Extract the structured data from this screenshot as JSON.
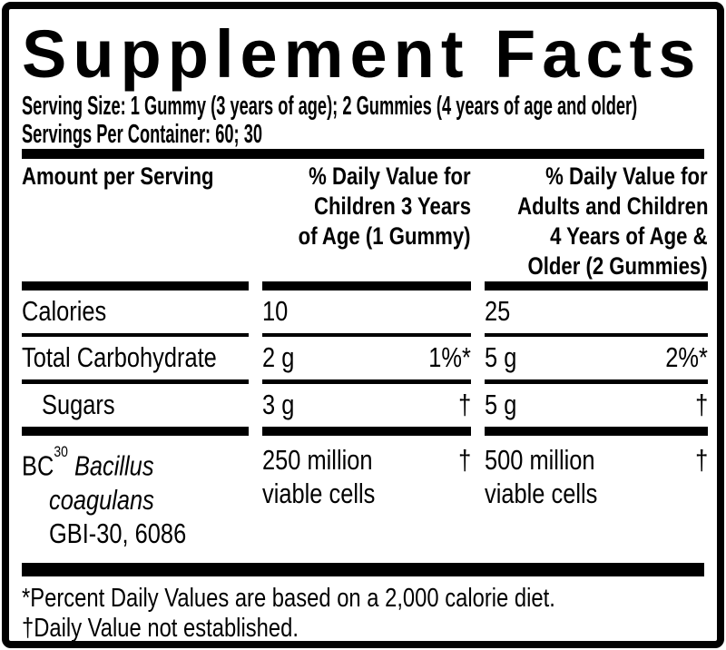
{
  "colors": {
    "text": "#000000",
    "background": "#ffffff",
    "border": "#000000"
  },
  "label": {
    "title": "Supplement Facts",
    "serving_size": "Serving Size: 1 Gummy (3 years of age); 2 Gummies (4 years of age and older)",
    "servings_per_container": "Servings Per Container: 60; 30"
  },
  "table": {
    "header": {
      "col1": "Amount per Serving",
      "col2_lines": [
        "% Daily Value for",
        "Children 3 Years",
        "of Age (1 Gummy)"
      ],
      "col3_lines": [
        "% Daily Value for",
        "Adults and Children",
        "4 Years of Age &",
        "Older (2 Gummies)"
      ]
    },
    "rows": [
      {
        "name": "Calories",
        "col2_amount": "10",
        "col2_dv": "",
        "col3_amount": "25",
        "col3_dv": ""
      },
      {
        "name": "Total Carbohydrate",
        "col2_amount": "2 g",
        "col2_dv": "1%*",
        "col3_amount": "5 g",
        "col3_dv": "2%*"
      },
      {
        "name": "Sugars",
        "col2_amount": "3 g",
        "col2_dv": "†",
        "col3_amount": "5 g",
        "col3_dv": "†"
      }
    ],
    "ingredient_row": {
      "name_prefix": "BC",
      "name_superscript": "30",
      "name_species_line1": "Bacillus",
      "name_species_line2": "coagulans",
      "name_strain": "GBI-30, 6086",
      "col2_lines": [
        "250 million",
        "viable cells"
      ],
      "col2_dv": "†",
      "col3_lines": [
        "500 million",
        "viable cells"
      ],
      "col3_dv": "†"
    }
  },
  "footnotes": [
    "*Percent Daily Values are based on a 2,000 calorie diet.",
    "†Daily Value not established."
  ]
}
